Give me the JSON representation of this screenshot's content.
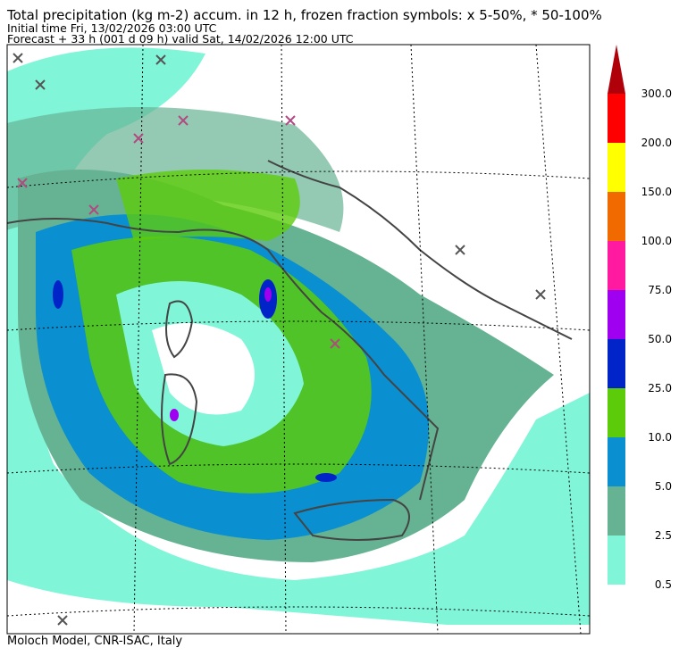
{
  "header": {
    "title": "Total precipitation (kg m-2) accum. in 12 h, frozen fraction symbols: x 5-50%, * 50-100%",
    "initial_time": "Initial time  Fri, 13/02/2026  03:00 UTC",
    "forecast": "Forecast  +  33 h  (001 d 09 h)  valid Sat, 14/02/2026 12:00 UTC"
  },
  "legend": {
    "labels": [
      "0.5",
      "2.5",
      "5.0",
      "10.0",
      "25.0",
      "50.0",
      "75.0",
      "100.0",
      "150.0",
      "200.0",
      "300.0"
    ],
    "colors": [
      "#80f5d8",
      "#66b394",
      "#0a8fd0",
      "#5ccc0a",
      "#0024c8",
      "#a000f0",
      "#ff1aa0",
      "#f06a00",
      "#ffff00",
      "#ff0000",
      "#b0000a"
    ]
  },
  "footer": "Moloch Model, CNR-ISAC, Italy"
}
